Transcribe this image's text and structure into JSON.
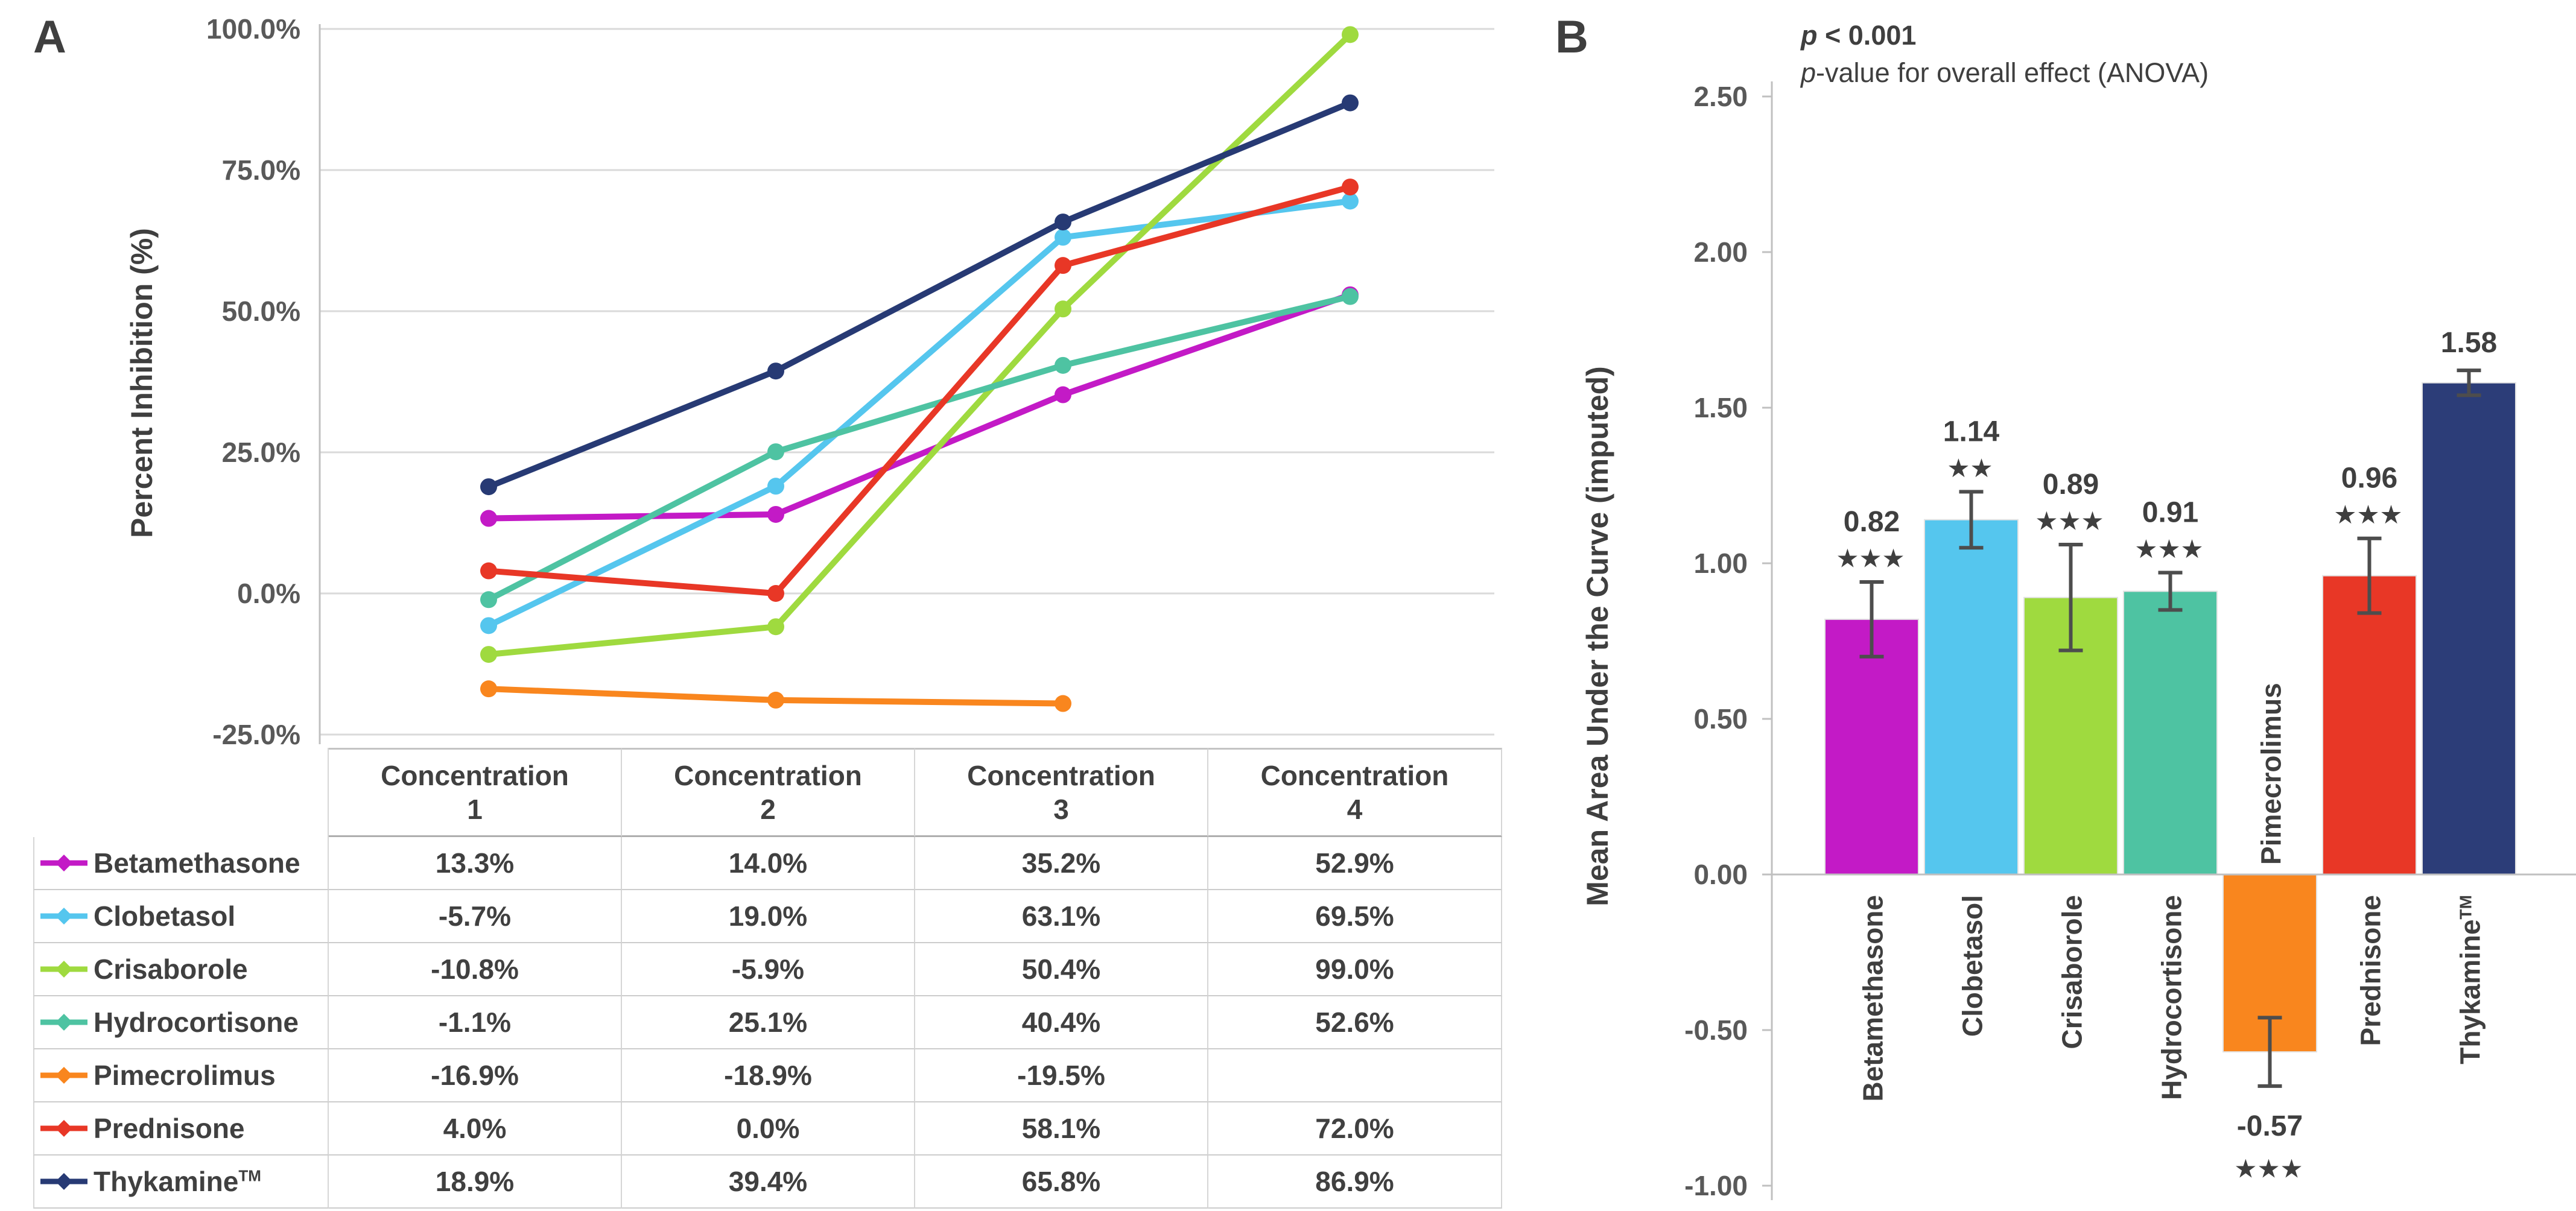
{
  "figure": {
    "panel_a_label": "A",
    "panel_b_label": "B",
    "annotation": {
      "p_italic": "p",
      "line1_rest": " < 0.001",
      "line2_prefix": "p",
      "line2_rest": "-value for overall effect (ANOVA)"
    }
  },
  "chart_data": [
    {
      "id": "percent-inhibition-lines",
      "type": "line",
      "panel": "A",
      "title": "",
      "xlabel": "",
      "ylabel": "Percent Inhibition (%)",
      "ylim": [
        -25,
        100
      ],
      "grid": true,
      "legend_position": "table-left",
      "ytick_values": [
        100,
        75,
        50,
        25,
        0,
        -25
      ],
      "ytick_labels": [
        "100.0%",
        "75.0%",
        "50.0%",
        "25.0%",
        "0.0%",
        "-25.0%"
      ],
      "categories": [
        "Concentration 1",
        "Concentration 2",
        "Concentration 3",
        "Concentration 4"
      ],
      "series": [
        {
          "name": "Betamethasone",
          "tm": false,
          "color": "#C31AC6",
          "values": [
            13.3,
            14.0,
            35.2,
            52.9
          ],
          "labels": [
            "13.3%",
            "14.0%",
            "35.2%",
            "52.9%"
          ]
        },
        {
          "name": "Clobetasol",
          "tm": false,
          "color": "#55C6EE",
          "values": [
            -5.7,
            19.0,
            63.1,
            69.5
          ],
          "labels": [
            "-5.7%",
            "19.0%",
            "63.1%",
            "69.5%"
          ]
        },
        {
          "name": "Crisaborole",
          "tm": false,
          "color": "#9FDA3F",
          "values": [
            -10.8,
            -5.9,
            50.4,
            99.0
          ],
          "labels": [
            "-10.8%",
            "-5.9%",
            "50.4%",
            "99.0%"
          ]
        },
        {
          "name": "Hydrocortisone",
          "tm": false,
          "color": "#4EC3A2",
          "values": [
            -1.1,
            25.1,
            40.4,
            52.6
          ],
          "labels": [
            "-1.1%",
            "25.1%",
            "40.4%",
            "52.6%"
          ]
        },
        {
          "name": "Pimecrolimus",
          "tm": false,
          "color": "#F9861E",
          "values": [
            -16.9,
            -18.9,
            -19.5,
            null
          ],
          "labels": [
            "-16.9%",
            "-18.9%",
            "-19.5%",
            ""
          ]
        },
        {
          "name": "Prednisone",
          "tm": false,
          "color": "#E83726",
          "values": [
            4.0,
            0.0,
            58.1,
            72.0
          ],
          "labels": [
            "4.0%",
            "0.0%",
            "58.1%",
            "72.0%"
          ]
        },
        {
          "name": "Thykamine",
          "tm": true,
          "color": "#273A74",
          "values": [
            18.9,
            39.4,
            65.8,
            86.9
          ],
          "labels": [
            "18.9%",
            "39.4%",
            "65.8%",
            "86.9%"
          ]
        }
      ]
    },
    {
      "id": "mean-auc-bars",
      "type": "bar",
      "panel": "B",
      "title": "",
      "xlabel": "",
      "ylabel": "Mean Area Under the Curve (imputed)",
      "ylim": [
        -1.0,
        2.5
      ],
      "grid": false,
      "ytick_values": [
        2.5,
        2.0,
        1.5,
        1.0,
        0.5,
        0.0,
        -0.5,
        -1.0
      ],
      "ytick_labels": [
        "2.50",
        "2.00",
        "1.50",
        "1.00",
        "0.50",
        "0.00",
        "-0.50",
        "-1.00"
      ],
      "categories": [
        "Betamethasone",
        "Clobetasol",
        "Crisaborole",
        "Hydrocortisone",
        "Pimecrolimus",
        "Prednisone",
        "Thykamine"
      ],
      "category_tm": [
        false,
        false,
        false,
        false,
        false,
        false,
        true
      ],
      "values": [
        0.82,
        1.14,
        0.89,
        0.91,
        -0.57,
        0.96,
        1.58
      ],
      "value_labels": [
        "0.82",
        "1.14",
        "0.89",
        "0.91",
        "-0.57",
        "0.96",
        "1.58"
      ],
      "errors": [
        0.12,
        0.09,
        0.17,
        0.06,
        0.11,
        0.12,
        0.04
      ],
      "significance": [
        "***",
        "**",
        "***",
        "***",
        "***",
        "***",
        ""
      ],
      "colors": [
        "#C31AC6",
        "#55C6EE",
        "#9FDA3F",
        "#4EC3A2",
        "#F9861E",
        "#E83726",
        "#2C3D78"
      ]
    }
  ]
}
